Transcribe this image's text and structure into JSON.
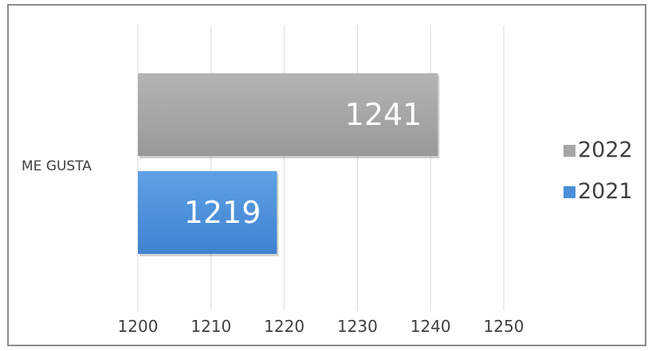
{
  "chart_data": {
    "type": "bar",
    "orientation": "horizontal",
    "categories": [
      "ME GUSTA"
    ],
    "series": [
      {
        "name": "2022",
        "values": [
          1241
        ],
        "color": "#a6a6a6"
      },
      {
        "name": "2021",
        "values": [
          1219
        ],
        "color": "#4a8fd8"
      }
    ],
    "xticks": [
      1200,
      1210,
      1220,
      1230,
      1240,
      1250
    ],
    "xlim": [
      1200,
      1250
    ],
    "title": "",
    "xlabel": "",
    "ylabel": "",
    "grid": "vertical",
    "legend": "right",
    "data_labels": true
  }
}
